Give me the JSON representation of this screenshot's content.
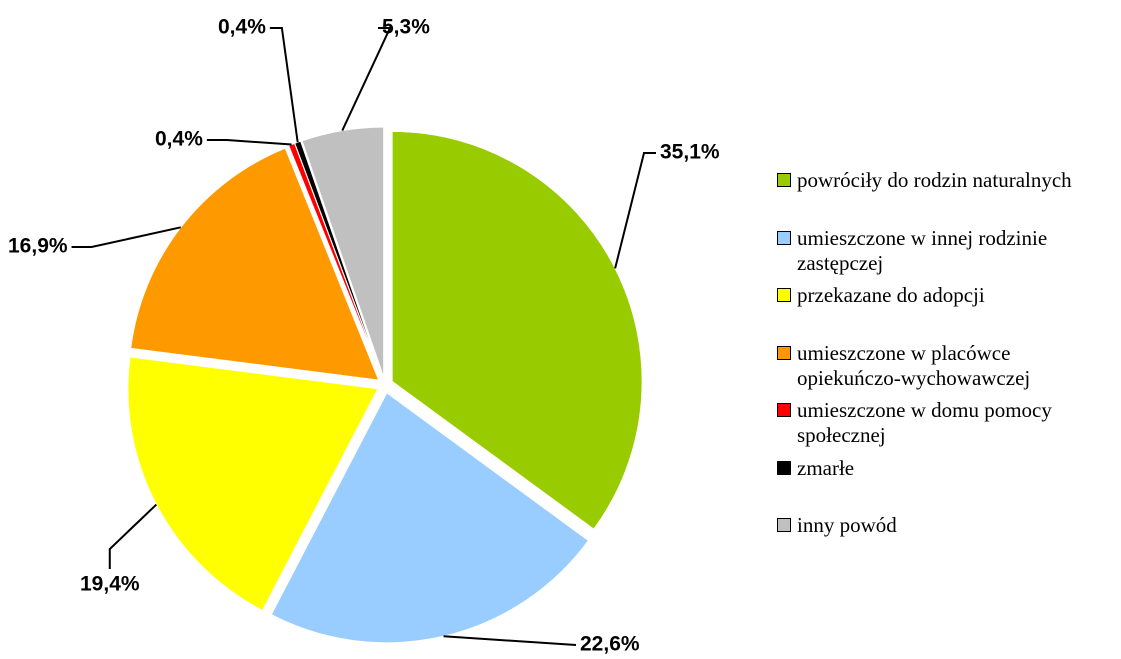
{
  "chart_data": {
    "type": "pie",
    "categories": [
      "powróciły do rodzin naturalnych",
      "umieszczone w innej rodzinie zastępczej",
      "przekazane do adopcji",
      "umieszczone w placówce opiekuńczo-wychowawczej",
      "umieszczone w domu pomocy społecznej",
      "zmarłe",
      "inny powód"
    ],
    "values": [
      35.1,
      22.6,
      19.4,
      16.9,
      0.4,
      0.4,
      5.3
    ],
    "value_labels": [
      "35,1%",
      "22,6%",
      "19,4%",
      "16,9%",
      "0,4%",
      "0,4%",
      "5,3%"
    ],
    "colors": [
      "#99cc00",
      "#99ccff",
      "#ffff00",
      "#ff9900",
      "#ff0000",
      "#000000",
      "#c0c0c0"
    ],
    "legend": "right"
  }
}
